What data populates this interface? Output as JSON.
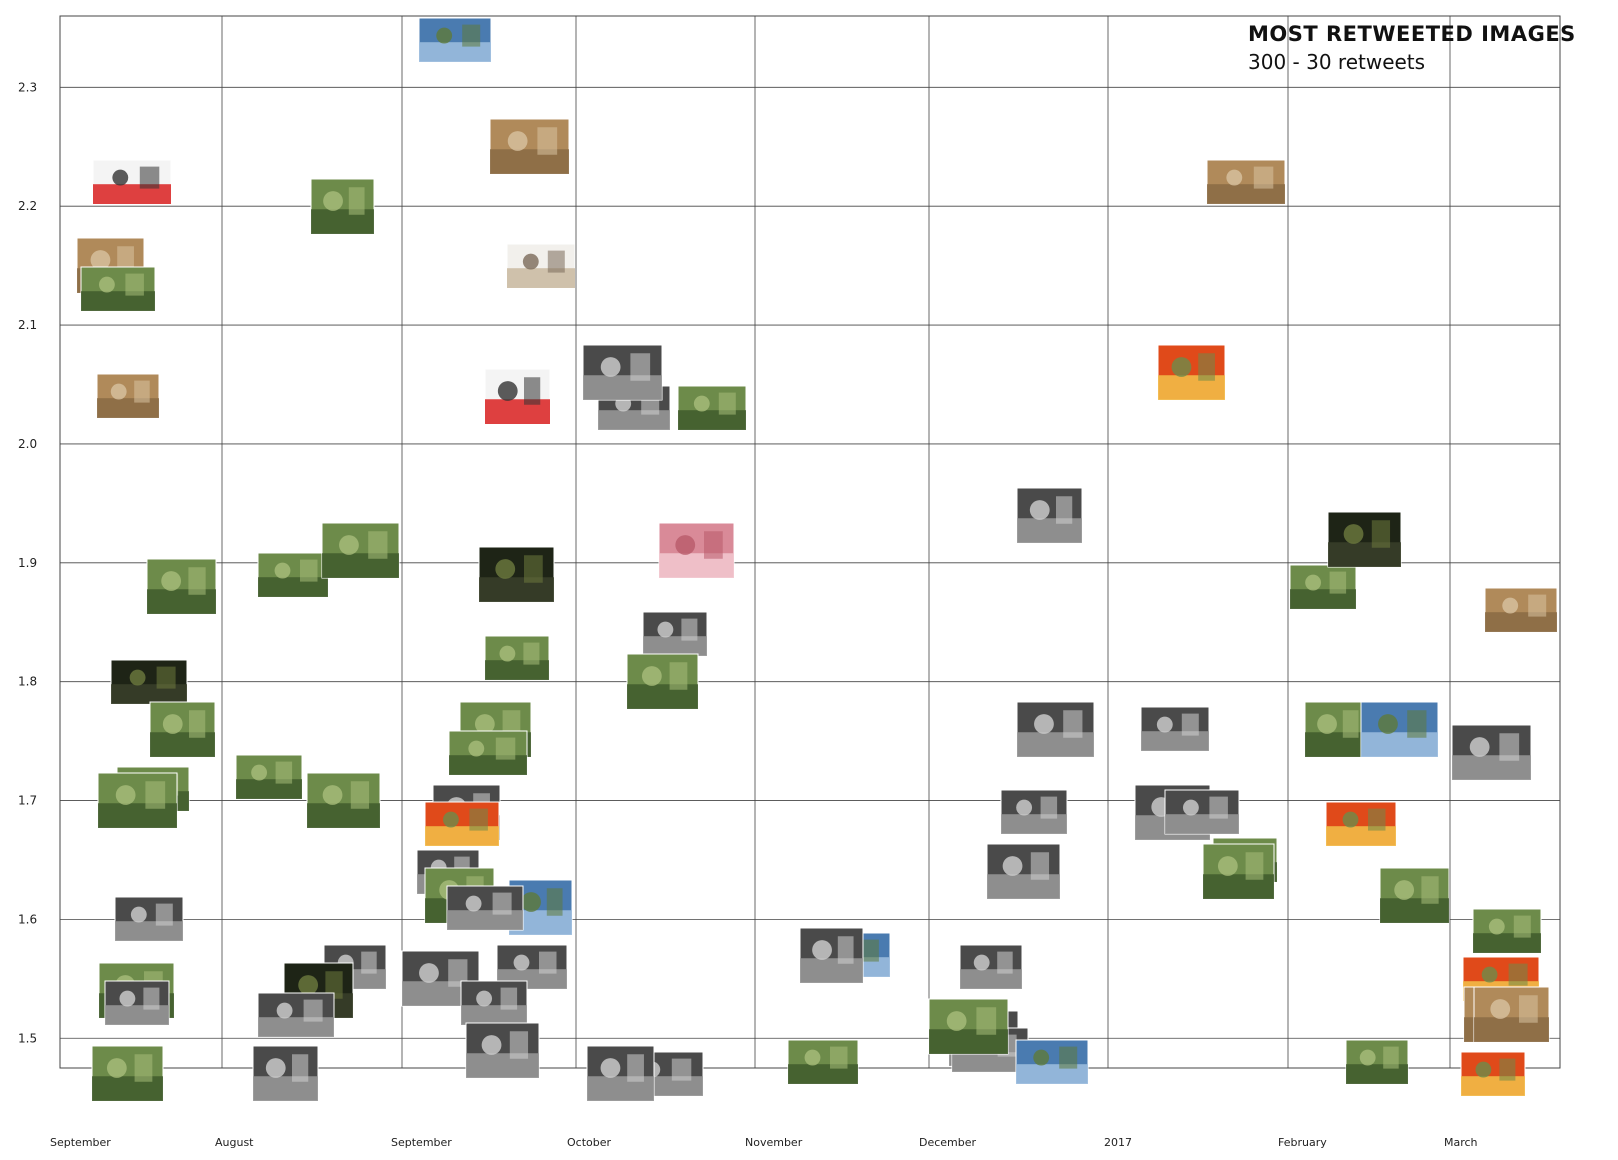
{
  "chart_data": {
    "type": "scatter",
    "title": "MOST RETWEETED IMAGES",
    "subtitle": "300 - 30 retweets",
    "xlabel": "",
    "ylabel": "",
    "x_tick_labels": [
      "September",
      "August",
      "September",
      "October",
      "November",
      "December",
      "2017",
      "February",
      "March"
    ],
    "y_ticks": [
      1.5,
      1.6,
      1.7,
      1.8,
      1.9,
      2.0,
      2.1,
      2.2,
      2.3
    ],
    "y_tick_labels": [
      "1.5",
      "1.6",
      "1.7",
      "1.8",
      "1.9",
      "2.0",
      "2.1",
      "2.2",
      "2.3"
    ],
    "ylim": [
      1.475,
      2.36
    ],
    "grid": true,
    "marker": "photo thumbnail",
    "palette": {
      "grid": "#444444",
      "thumb_greens": [
        "#5e7a3a",
        "#7f9a55",
        "#3f5a2c",
        "#9bb06f",
        "#6d8b4a"
      ],
      "thumb_greys": [
        "#3a3a3a",
        "#777777",
        "#a9a9a9",
        "#c9c9c9",
        "#555555"
      ],
      "accent": [
        "#c8a2a6",
        "#e04a1a",
        "#d9a94a",
        "#4a7bb0",
        "#c6463f"
      ]
    },
    "points": [
      {
        "x": "September",
        "y": 2.04,
        "tone": "warm"
      },
      {
        "x": "September",
        "y": 1.88,
        "tone": "green"
      },
      {
        "x": "September",
        "y": 1.8,
        "tone": "dark"
      },
      {
        "x": "September",
        "y": 1.76,
        "tone": "green"
      },
      {
        "x": "September",
        "y": 1.71,
        "tone": "green"
      },
      {
        "x": "September",
        "y": 1.7,
        "tone": "green"
      },
      {
        "x": "September",
        "y": 1.6,
        "tone": "grey"
      },
      {
        "x": "September",
        "y": 1.54,
        "tone": "green"
      },
      {
        "x": "September",
        "y": 1.53,
        "tone": "grey"
      },
      {
        "x": "September",
        "y": 1.47,
        "tone": "green"
      },
      {
        "x": "September",
        "y": 2.22,
        "tone": "doc"
      },
      {
        "x": "September",
        "y": 2.15,
        "tone": "warm"
      },
      {
        "x": "September",
        "y": 2.13,
        "tone": "green"
      },
      {
        "x": "August",
        "y": 2.2,
        "tone": "green"
      },
      {
        "x": "August",
        "y": 1.89,
        "tone": "green"
      },
      {
        "x": "August",
        "y": 1.91,
        "tone": "green"
      },
      {
        "x": "August",
        "y": 1.72,
        "tone": "green"
      },
      {
        "x": "August",
        "y": 1.7,
        "tone": "green"
      },
      {
        "x": "August",
        "y": 1.56,
        "tone": "grey"
      },
      {
        "x": "August",
        "y": 1.54,
        "tone": "dark"
      },
      {
        "x": "August",
        "y": 1.52,
        "tone": "grey"
      },
      {
        "x": "August",
        "y": 1.47,
        "tone": "grey"
      },
      {
        "x": "September",
        "y": 2.34,
        "tone": "blue"
      },
      {
        "x": "September",
        "y": 2.25,
        "tone": "warm"
      },
      {
        "x": "September",
        "y": 2.15,
        "tone": "white"
      },
      {
        "x": "September",
        "y": 1.89,
        "tone": "dark"
      },
      {
        "x": "September",
        "y": 1.82,
        "tone": "green"
      },
      {
        "x": "September",
        "y": 1.76,
        "tone": "green"
      },
      {
        "x": "September",
        "y": 1.74,
        "tone": "green"
      },
      {
        "x": "September",
        "y": 1.69,
        "tone": "grey"
      },
      {
        "x": "September",
        "y": 1.68,
        "tone": "accent"
      },
      {
        "x": "September",
        "y": 1.61,
        "tone": "blue"
      },
      {
        "x": "September",
        "y": 1.56,
        "tone": "grey"
      },
      {
        "x": "September",
        "y": 1.55,
        "tone": "grey"
      },
      {
        "x": "September",
        "y": 1.53,
        "tone": "grey"
      },
      {
        "x": "September",
        "y": 1.49,
        "tone": "grey"
      },
      {
        "x": "September",
        "y": 1.64,
        "tone": "grey"
      },
      {
        "x": "September",
        "y": 1.62,
        "tone": "green"
      },
      {
        "x": "September",
        "y": 1.61,
        "tone": "grey"
      },
      {
        "x": "September",
        "y": 2.04,
        "tone": "doc"
      },
      {
        "x": "October",
        "y": 2.03,
        "tone": "grey"
      },
      {
        "x": "October",
        "y": 2.06,
        "tone": "grey"
      },
      {
        "x": "October",
        "y": 2.03,
        "tone": "green"
      },
      {
        "x": "October",
        "y": 1.91,
        "tone": "pink"
      },
      {
        "x": "October",
        "y": 1.84,
        "tone": "grey"
      },
      {
        "x": "October",
        "y": 1.8,
        "tone": "green"
      },
      {
        "x": "October",
        "y": 1.47,
        "tone": "grey"
      },
      {
        "x": "October",
        "y": 1.47,
        "tone": "grey"
      },
      {
        "x": "November",
        "y": 1.57,
        "tone": "blue"
      },
      {
        "x": "November",
        "y": 1.57,
        "tone": "grey"
      },
      {
        "x": "November",
        "y": 1.48,
        "tone": "green"
      },
      {
        "x": "December",
        "y": 1.76,
        "tone": "grey"
      },
      {
        "x": "December",
        "y": 1.69,
        "tone": "grey"
      },
      {
        "x": "December",
        "y": 1.64,
        "tone": "grey"
      },
      {
        "x": "December",
        "y": 1.56,
        "tone": "grey"
      },
      {
        "x": "December",
        "y": 1.5,
        "tone": "grey"
      },
      {
        "x": "December",
        "y": 1.49,
        "tone": "grey"
      },
      {
        "x": "December",
        "y": 1.94,
        "tone": "grey"
      },
      {
        "x": "December",
        "y": 1.48,
        "tone": "blue"
      },
      {
        "x": "December",
        "y": 1.51,
        "tone": "green"
      },
      {
        "x": "2017",
        "y": 1.76,
        "tone": "grey"
      },
      {
        "x": "2017",
        "y": 1.69,
        "tone": "grey"
      },
      {
        "x": "2017",
        "y": 1.65,
        "tone": "green"
      },
      {
        "x": "2017",
        "y": 1.64,
        "tone": "green"
      },
      {
        "x": "2017",
        "y": 2.22,
        "tone": "warm"
      },
      {
        "x": "2017",
        "y": 2.06,
        "tone": "accent"
      },
      {
        "x": "2017",
        "y": 1.69,
        "tone": "grey"
      },
      {
        "x": "February",
        "y": 1.76,
        "tone": "green"
      },
      {
        "x": "February",
        "y": 1.68,
        "tone": "accent"
      },
      {
        "x": "February",
        "y": 1.76,
        "tone": "blue"
      },
      {
        "x": "February",
        "y": 1.88,
        "tone": "green"
      },
      {
        "x": "February",
        "y": 1.92,
        "tone": "dark"
      },
      {
        "x": "February",
        "y": 1.48,
        "tone": "green"
      },
      {
        "x": "February",
        "y": 1.62,
        "tone": "green"
      },
      {
        "x": "March",
        "y": 1.55,
        "tone": "accent"
      },
      {
        "x": "March",
        "y": 1.52,
        "tone": "warm"
      },
      {
        "x": "March",
        "y": 1.86,
        "tone": "warm"
      },
      {
        "x": "March",
        "y": 1.74,
        "tone": "grey"
      },
      {
        "x": "March",
        "y": 1.59,
        "tone": "green"
      },
      {
        "x": "March",
        "y": 1.52,
        "tone": "warm"
      },
      {
        "x": "March",
        "y": 1.47,
        "tone": "accent"
      }
    ]
  }
}
